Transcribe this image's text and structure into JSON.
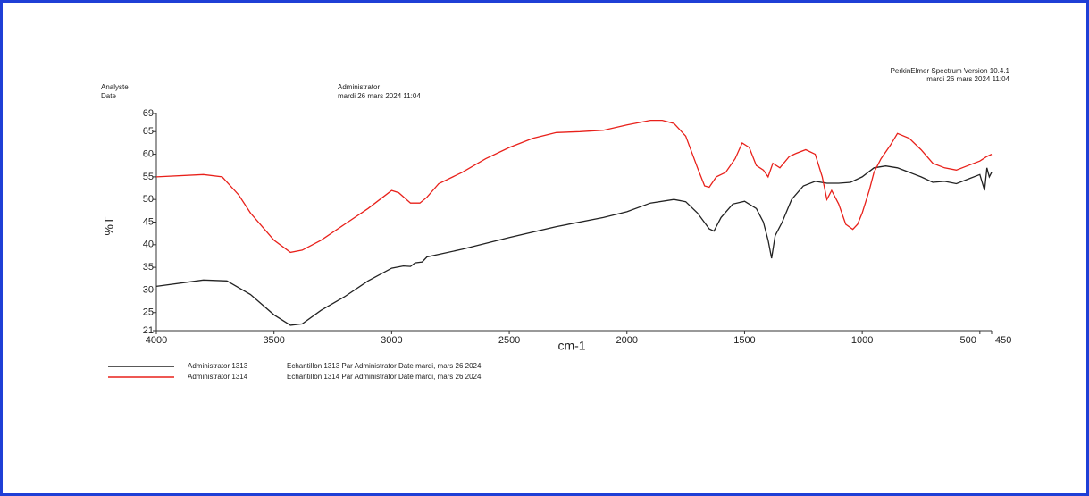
{
  "chart_data": {
    "type": "line",
    "header": {
      "analyst_label": "Analyste",
      "date_label": "Date",
      "analyst": "Administrator",
      "date": "mardi 26 mars 2024 11:04",
      "software": "PerkinElmer Spectrum Version 10.4.1",
      "software_date": "mardi 26 mars 2024 11:04"
    },
    "x_label": "cm-1",
    "y_label": "%T",
    "xlim": [
      4000,
      450
    ],
    "ylim": [
      21,
      69
    ],
    "xticks": [
      4000,
      3500,
      3000,
      2500,
      2000,
      1500,
      1000,
      500,
      450
    ],
    "yticks": [
      21,
      25,
      30,
      35,
      40,
      45,
      50,
      55,
      60,
      65,
      69
    ],
    "series": [
      {
        "name": "Administrator 1313",
        "description": "Echantillon 1313 Par Administrator Date mardi, mars 26 2024",
        "color": "#222222",
        "x": [
          4000,
          3800,
          3700,
          3600,
          3500,
          3430,
          3380,
          3300,
          3200,
          3100,
          3000,
          2950,
          2920,
          2900,
          2870,
          2850,
          2700,
          2500,
          2300,
          2100,
          2000,
          1900,
          1800,
          1750,
          1700,
          1650,
          1630,
          1600,
          1550,
          1500,
          1450,
          1420,
          1400,
          1385,
          1370,
          1340,
          1300,
          1250,
          1200,
          1150,
          1100,
          1050,
          1000,
          950,
          900,
          850,
          800,
          750,
          700,
          650,
          600,
          550,
          500,
          480,
          470,
          460,
          450
        ],
        "values": [
          30.8,
          32.2,
          32,
          29,
          24.5,
          22.2,
          22.5,
          25.5,
          28.5,
          32,
          34.8,
          35.3,
          35.2,
          36,
          36.2,
          37.3,
          39,
          41.6,
          44,
          46,
          47.3,
          49.2,
          50,
          49.5,
          47,
          43.5,
          43,
          46,
          49,
          49.6,
          48,
          45,
          41,
          37,
          42,
          45,
          50,
          53,
          54,
          53.6,
          53.6,
          53.8,
          55,
          57,
          57.4,
          57,
          56,
          55,
          53.8,
          54,
          53.5,
          54.5,
          55.5,
          52,
          57,
          55,
          56
        ]
      },
      {
        "name": "Administrator 1314",
        "description": "Echantillon 1314 Par Administrator Date mardi, mars 26 2024",
        "color": "#e8201a",
        "x": [
          4000,
          3800,
          3720,
          3650,
          3600,
          3500,
          3430,
          3380,
          3300,
          3200,
          3100,
          3050,
          3000,
          2970,
          2920,
          2880,
          2850,
          2800,
          2700,
          2600,
          2500,
          2400,
          2300,
          2200,
          2100,
          2000,
          1900,
          1850,
          1800,
          1750,
          1700,
          1670,
          1650,
          1620,
          1580,
          1540,
          1510,
          1480,
          1450,
          1420,
          1400,
          1380,
          1350,
          1310,
          1280,
          1240,
          1200,
          1170,
          1150,
          1130,
          1100,
          1070,
          1040,
          1020,
          1000,
          970,
          950,
          920,
          880,
          850,
          800,
          750,
          700,
          650,
          600,
          550,
          500,
          470,
          450
        ],
        "values": [
          55,
          55.5,
          55,
          51,
          47,
          41,
          38.3,
          38.8,
          41,
          44.5,
          48,
          50,
          52,
          51.5,
          49.2,
          49.2,
          50.5,
          53.5,
          56,
          59,
          61.5,
          63.5,
          64.8,
          65,
          65.3,
          66.5,
          67.5,
          67.5,
          66.8,
          64,
          57,
          53,
          52.7,
          55,
          56,
          59,
          62.5,
          61.5,
          57.5,
          56.5,
          55,
          58,
          57,
          59.5,
          60.2,
          61,
          60,
          55,
          50,
          52,
          49,
          44.5,
          43.4,
          44.5,
          47,
          52,
          56,
          59,
          62,
          64.6,
          63.5,
          61,
          58,
          57,
          56.5,
          57.5,
          58.5,
          59.5,
          60
        ]
      }
    ]
  }
}
